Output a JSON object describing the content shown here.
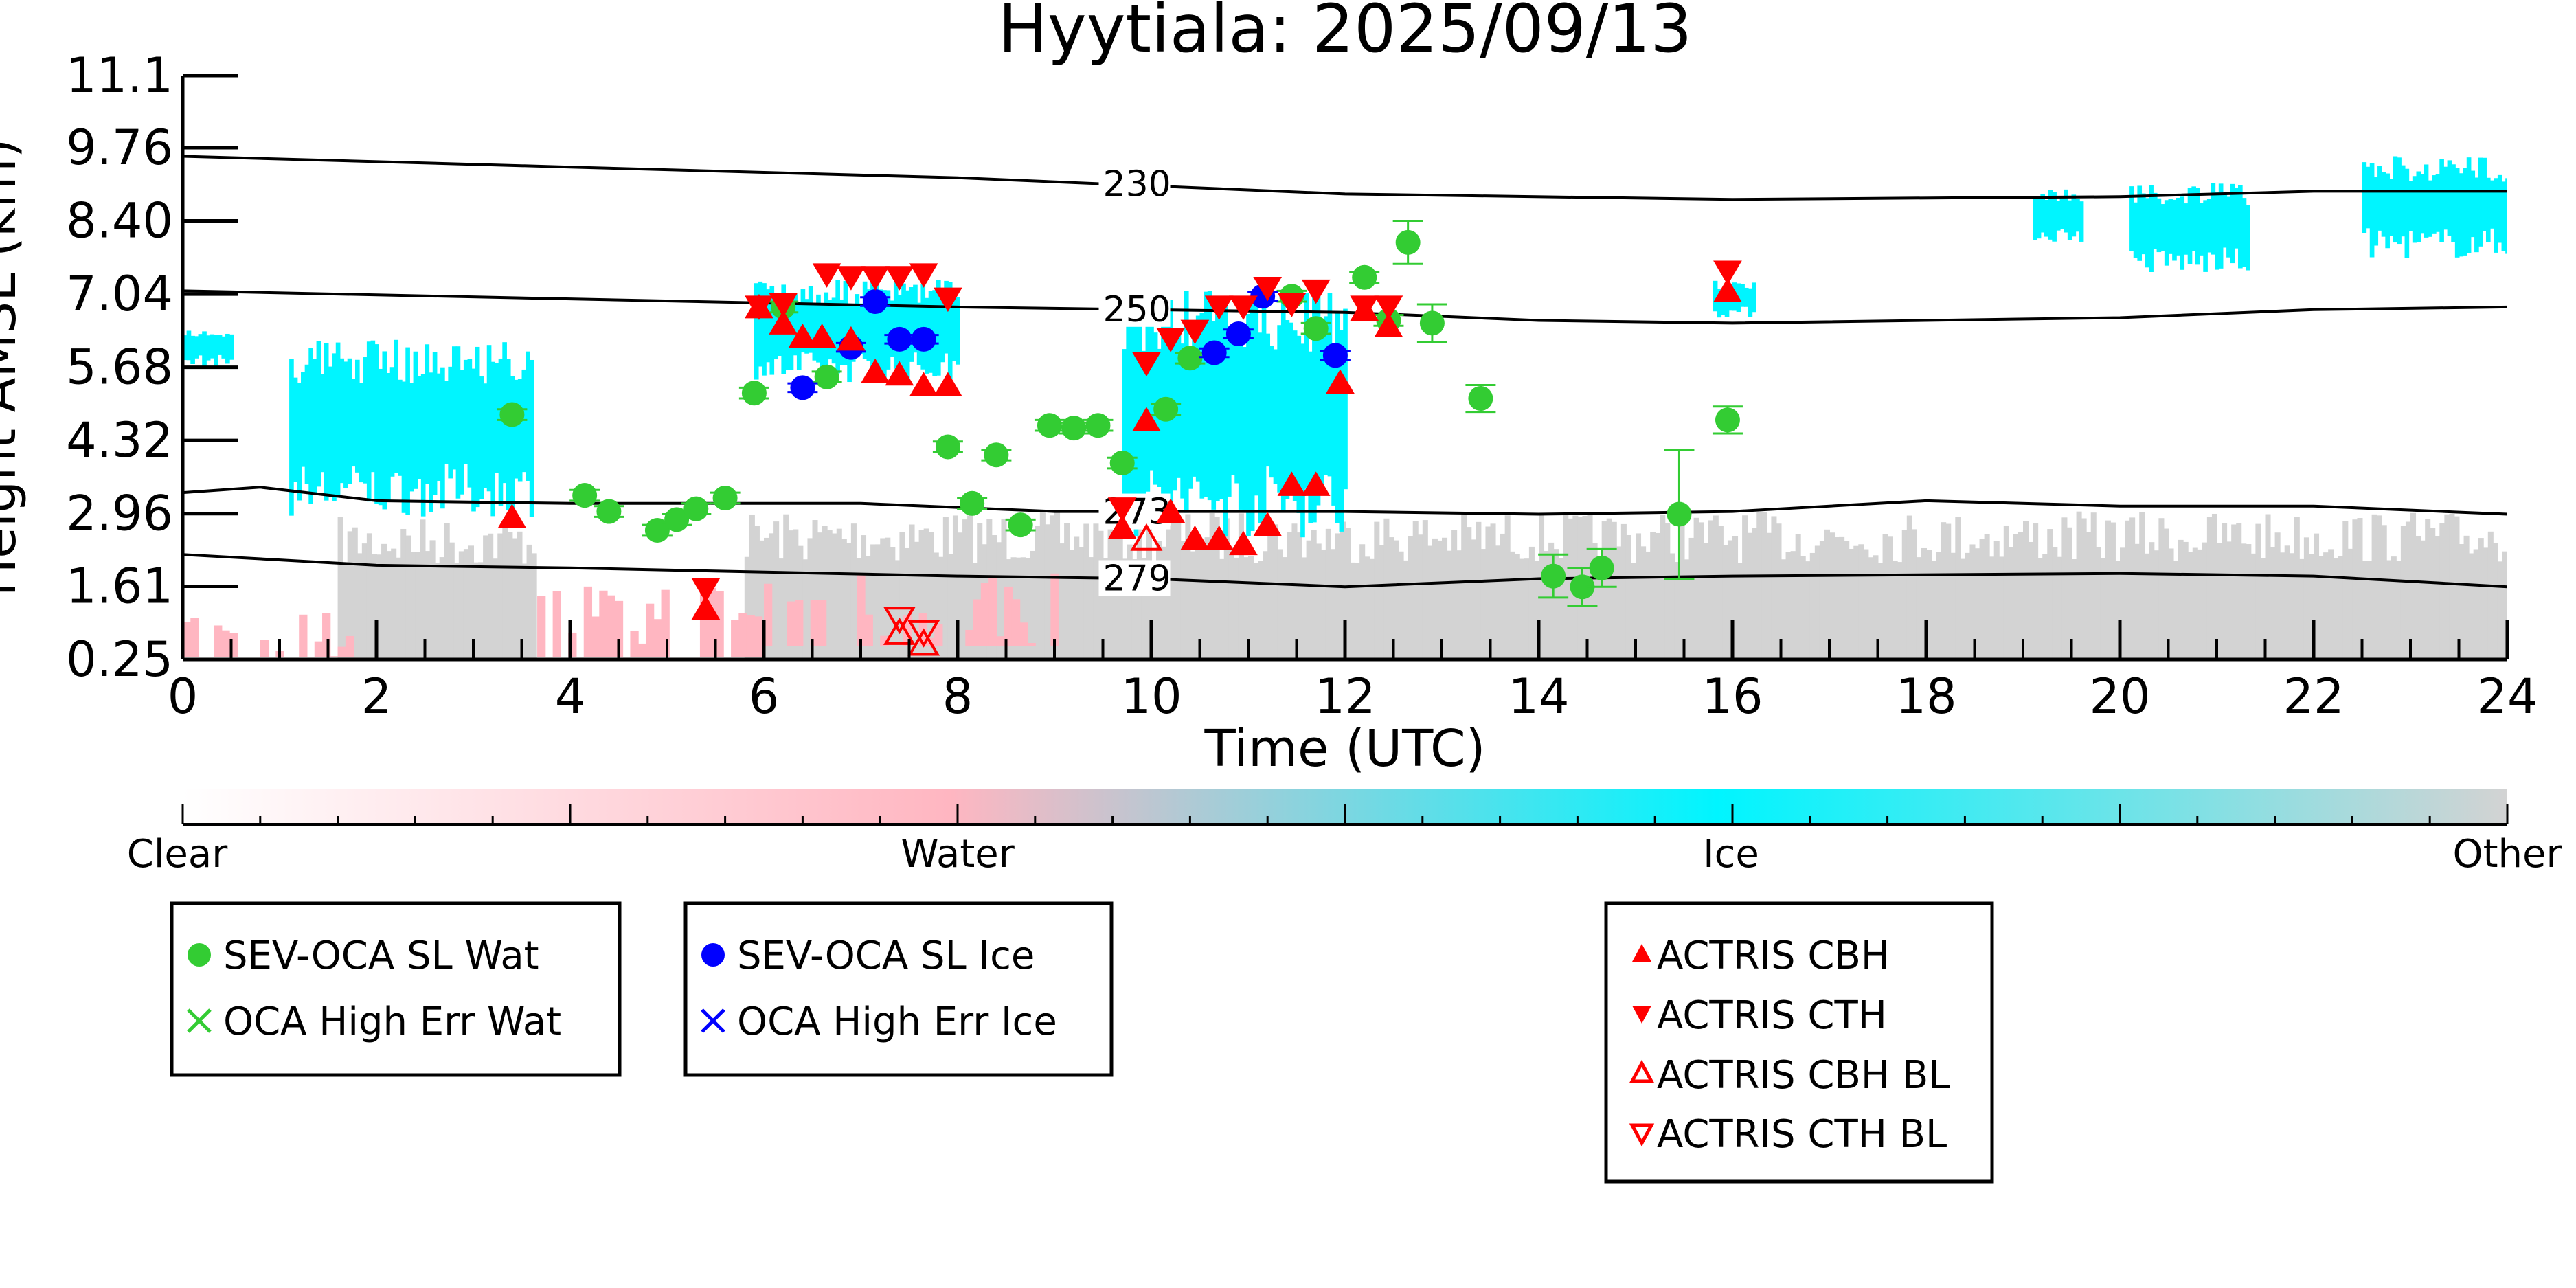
{
  "chart_data": {
    "type": "scatter",
    "title": "Hyytiala: 2025/09/13",
    "xlabel": "Time (UTC)",
    "ylabel": "Height AMSL (km)",
    "xlim": [
      0,
      24
    ],
    "ylim": [
      0.25,
      11.1
    ],
    "xticks": [
      "0",
      "2",
      "4",
      "6",
      "8",
      "10",
      "12",
      "14",
      "16",
      "18",
      "20",
      "22",
      "24"
    ],
    "yticks": [
      "0.25",
      "1.61",
      "2.96",
      "4.32",
      "5.68",
      "7.04",
      "8.40",
      "9.76",
      "11.1"
    ],
    "colorbar": {
      "labels": [
        "Clear",
        "Water",
        "Ice",
        "Other"
      ],
      "colors": [
        "#ffffff",
        "#ffb6c1",
        "#00f5ff",
        "#d3d3d3"
      ]
    },
    "background_classification": {
      "ice_regions": [
        {
          "t": [
            0,
            0.5
          ],
          "h": [
            5.7,
            6.4
          ]
        },
        {
          "t": [
            1.1,
            3.6
          ],
          "h": [
            2.9,
            6.2
          ]
        },
        {
          "t": [
            5.9,
            8.0
          ],
          "h": [
            5.4,
            7.3
          ]
        },
        {
          "t": [
            9.7,
            12.0
          ],
          "h": [
            2.5,
            7.1
          ]
        },
        {
          "t": [
            15.8,
            16.2
          ],
          "h": [
            6.6,
            7.3
          ]
        },
        {
          "t": [
            19.1,
            19.6
          ],
          "h": [
            8.0,
            9.0
          ]
        },
        {
          "t": [
            20.1,
            21.3
          ],
          "h": [
            7.4,
            9.1
          ]
        },
        {
          "t": [
            22.5,
            24
          ],
          "h": [
            7.7,
            9.6
          ]
        }
      ],
      "water_regions": [
        {
          "t": [
            0,
            1.7
          ],
          "h": [
            0.3,
            1.2
          ]
        },
        {
          "t": [
            3.5,
            6.0
          ],
          "h": [
            0.3,
            1.8
          ]
        },
        {
          "t": [
            6.0,
            9.0
          ],
          "h": [
            0.5,
            2.0
          ]
        }
      ],
      "other_regions": [
        {
          "t": [
            1.6,
            3.6
          ],
          "h": [
            0.25,
            2.9
          ]
        },
        {
          "t": [
            5.8,
            24
          ],
          "h": [
            0.25,
            3.0
          ]
        }
      ]
    },
    "contours": [
      {
        "label": "230",
        "label_x": 9.5,
        "points": [
          [
            0,
            9.6
          ],
          [
            4,
            9.4
          ],
          [
            8,
            9.2
          ],
          [
            12,
            8.9
          ],
          [
            16,
            8.8
          ],
          [
            20,
            8.85
          ],
          [
            22,
            8.95
          ],
          [
            24,
            8.95
          ]
        ]
      },
      {
        "label": "250",
        "label_x": 9.5,
        "points": [
          [
            0,
            7.1
          ],
          [
            4,
            6.95
          ],
          [
            8,
            6.8
          ],
          [
            12,
            6.7
          ],
          [
            14,
            6.55
          ],
          [
            16,
            6.5
          ],
          [
            20,
            6.6
          ],
          [
            22,
            6.75
          ],
          [
            24,
            6.8
          ]
        ]
      },
      {
        "label": "273",
        "label_x": 9.5,
        "points": [
          [
            0,
            3.35
          ],
          [
            0.8,
            3.45
          ],
          [
            2,
            3.2
          ],
          [
            4,
            3.15
          ],
          [
            7,
            3.15
          ],
          [
            9,
            3.0
          ],
          [
            12,
            3.0
          ],
          [
            14,
            2.95
          ],
          [
            16,
            3.0
          ],
          [
            18,
            3.2
          ],
          [
            20,
            3.1
          ],
          [
            22,
            3.1
          ],
          [
            24,
            2.95
          ]
        ]
      },
      {
        "label": "279",
        "label_x": 9.5,
        "points": [
          [
            0,
            2.2
          ],
          [
            2,
            2.0
          ],
          [
            4,
            1.95
          ],
          [
            8,
            1.8
          ],
          [
            10,
            1.75
          ],
          [
            12,
            1.6
          ],
          [
            14,
            1.75
          ],
          [
            16,
            1.8
          ],
          [
            20,
            1.85
          ],
          [
            22,
            1.8
          ],
          [
            24,
            1.6
          ]
        ]
      }
    ],
    "series": [
      {
        "name": "SEV-OCA SL Wat",
        "marker": "circle",
        "color": "#33cc33",
        "x": [
          3.4,
          4.15,
          4.4,
          4.9,
          5.1,
          5.3,
          5.6,
          5.9,
          6.2,
          6.65,
          7.9,
          8.15,
          8.4,
          8.65,
          8.95,
          9.2,
          9.45,
          9.7,
          10.15,
          10.4,
          11.45,
          11.7,
          12.2,
          12.45,
          12.65,
          12.9,
          13.4,
          14.15,
          14.45,
          14.65,
          15.45,
          15.95
        ],
        "y": [
          4.8,
          3.3,
          3.0,
          2.65,
          2.85,
          3.05,
          3.25,
          5.2,
          6.8,
          5.5,
          4.2,
          3.15,
          4.05,
          2.75,
          4.6,
          4.55,
          4.6,
          3.9,
          4.9,
          5.85,
          7.0,
          6.4,
          7.35,
          6.55,
          8.0,
          6.5,
          5.1,
          1.8,
          1.6,
          1.95,
          2.95,
          4.7
        ],
        "yerr": [
          0.1,
          0.1,
          0.1,
          0.1,
          0.1,
          0.1,
          0.1,
          0.1,
          0.1,
          0.1,
          0.1,
          0.1,
          0.1,
          0.1,
          0.1,
          0.1,
          0.1,
          0.1,
          0.1,
          0.1,
          0.1,
          0.1,
          0.1,
          0.1,
          0.4,
          0.35,
          0.25,
          0.4,
          0.35,
          0.35,
          1.2,
          0.25
        ]
      },
      {
        "name": "OCA High Err Wat",
        "marker": "x",
        "color": "#33cc33",
        "x": [],
        "y": []
      },
      {
        "name": "SEV-OCA SL Ice",
        "marker": "circle",
        "color": "#0000ff",
        "x": [
          6.4,
          6.9,
          7.15,
          7.4,
          7.65,
          10.65,
          10.9,
          11.15,
          11.9
        ],
        "y": [
          5.3,
          6.05,
          6.9,
          6.2,
          6.2,
          5.95,
          6.3,
          7.0,
          5.9
        ],
        "yerr": [
          0.08,
          0.08,
          0.08,
          0.08,
          0.08,
          0.08,
          0.08,
          0.08,
          0.08
        ]
      },
      {
        "name": "OCA High Err Ice",
        "marker": "x",
        "color": "#0000ff",
        "x": [],
        "y": []
      },
      {
        "name": "ACTRIS CBH",
        "marker": "triangle-up",
        "color": "#ff0000",
        "x": [
          3.4,
          5.4,
          5.95,
          6.2,
          6.4,
          6.6,
          6.9,
          7.15,
          7.4,
          7.65,
          7.9,
          9.7,
          9.95,
          10.2,
          10.45,
          10.7,
          10.95,
          11.2,
          11.45,
          11.7,
          11.95,
          12.2,
          12.45,
          15.95
        ],
        "y": [
          2.9,
          1.2,
          6.8,
          6.5,
          6.25,
          6.25,
          6.2,
          5.6,
          5.55,
          5.35,
          5.35,
          2.7,
          4.7,
          3.0,
          2.5,
          2.5,
          2.4,
          2.75,
          3.5,
          3.5,
          5.4,
          6.75,
          6.45,
          7.1
        ]
      },
      {
        "name": "ACTRIS CTH",
        "marker": "triangle-down",
        "color": "#ff0000",
        "x": [
          5.4,
          5.95,
          6.2,
          6.65,
          6.9,
          7.15,
          7.4,
          7.65,
          7.9,
          9.7,
          9.95,
          10.2,
          10.45,
          10.7,
          10.95,
          11.2,
          11.45,
          11.7,
          12.2,
          12.45,
          15.95
        ],
        "y": [
          1.55,
          6.8,
          6.85,
          7.4,
          7.35,
          7.35,
          7.35,
          7.4,
          6.95,
          3.05,
          5.75,
          6.2,
          6.35,
          6.8,
          6.8,
          7.15,
          6.85,
          7.1,
          6.8,
          6.8,
          7.45
        ]
      },
      {
        "name": "ACTRIS CBH BL",
        "marker": "triangle-up-open",
        "color": "#ff0000",
        "x": [
          7.4,
          7.65,
          9.95
        ],
        "y": [
          0.75,
          0.55,
          2.5
        ]
      },
      {
        "name": "ACTRIS CTH BL",
        "marker": "triangle-down-open",
        "color": "#ff0000",
        "x": [
          7.4,
          7.65
        ],
        "y": [
          1.0,
          0.75
        ]
      }
    ],
    "legend_placement": "bottom"
  }
}
